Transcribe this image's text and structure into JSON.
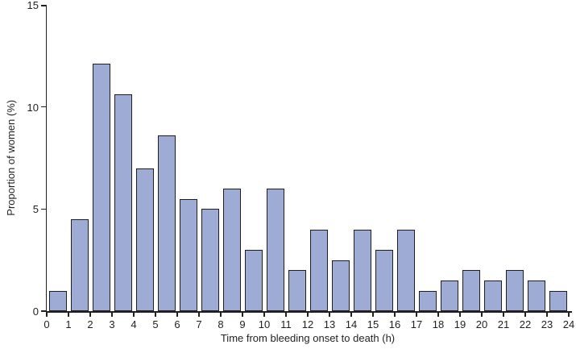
{
  "chart_data": {
    "type": "bar",
    "title": "",
    "xlabel": "Time from bleeding onset to death (h)",
    "ylabel": "Proportion of women (%)",
    "bin_width_hours": 1,
    "categories": [
      "0-1",
      "1-2",
      "2-3",
      "3-4",
      "4-5",
      "5-6",
      "6-7",
      "7-8",
      "8-9",
      "9-10",
      "10-11",
      "11-12",
      "12-13",
      "13-14",
      "14-15",
      "15-16",
      "16-17",
      "17-18",
      "18-19",
      "19-20",
      "20-21",
      "21-22",
      "22-23",
      "23-24"
    ],
    "values": [
      1.0,
      4.5,
      12.1,
      10.6,
      7.0,
      8.6,
      5.5,
      5.0,
      6.0,
      3.0,
      6.0,
      2.0,
      4.0,
      2.5,
      4.0,
      3.0,
      4.0,
      1.0,
      1.5,
      2.0,
      1.5,
      2.0,
      1.5,
      1.0
    ],
    "x_ticks": [
      0,
      1,
      2,
      3,
      4,
      5,
      6,
      7,
      8,
      9,
      10,
      11,
      12,
      13,
      14,
      15,
      16,
      17,
      18,
      19,
      20,
      21,
      22,
      23,
      24
    ],
    "y_ticks": [
      0,
      5,
      10,
      15
    ],
    "xlim": [
      0,
      24
    ],
    "ylim": [
      0,
      15
    ],
    "grid": false,
    "legend": null,
    "colors": {
      "bar_fill": "#9dabd5",
      "bar_stroke": "#1f1f1f",
      "axis": "#231f20",
      "background": "#ffffff"
    }
  }
}
